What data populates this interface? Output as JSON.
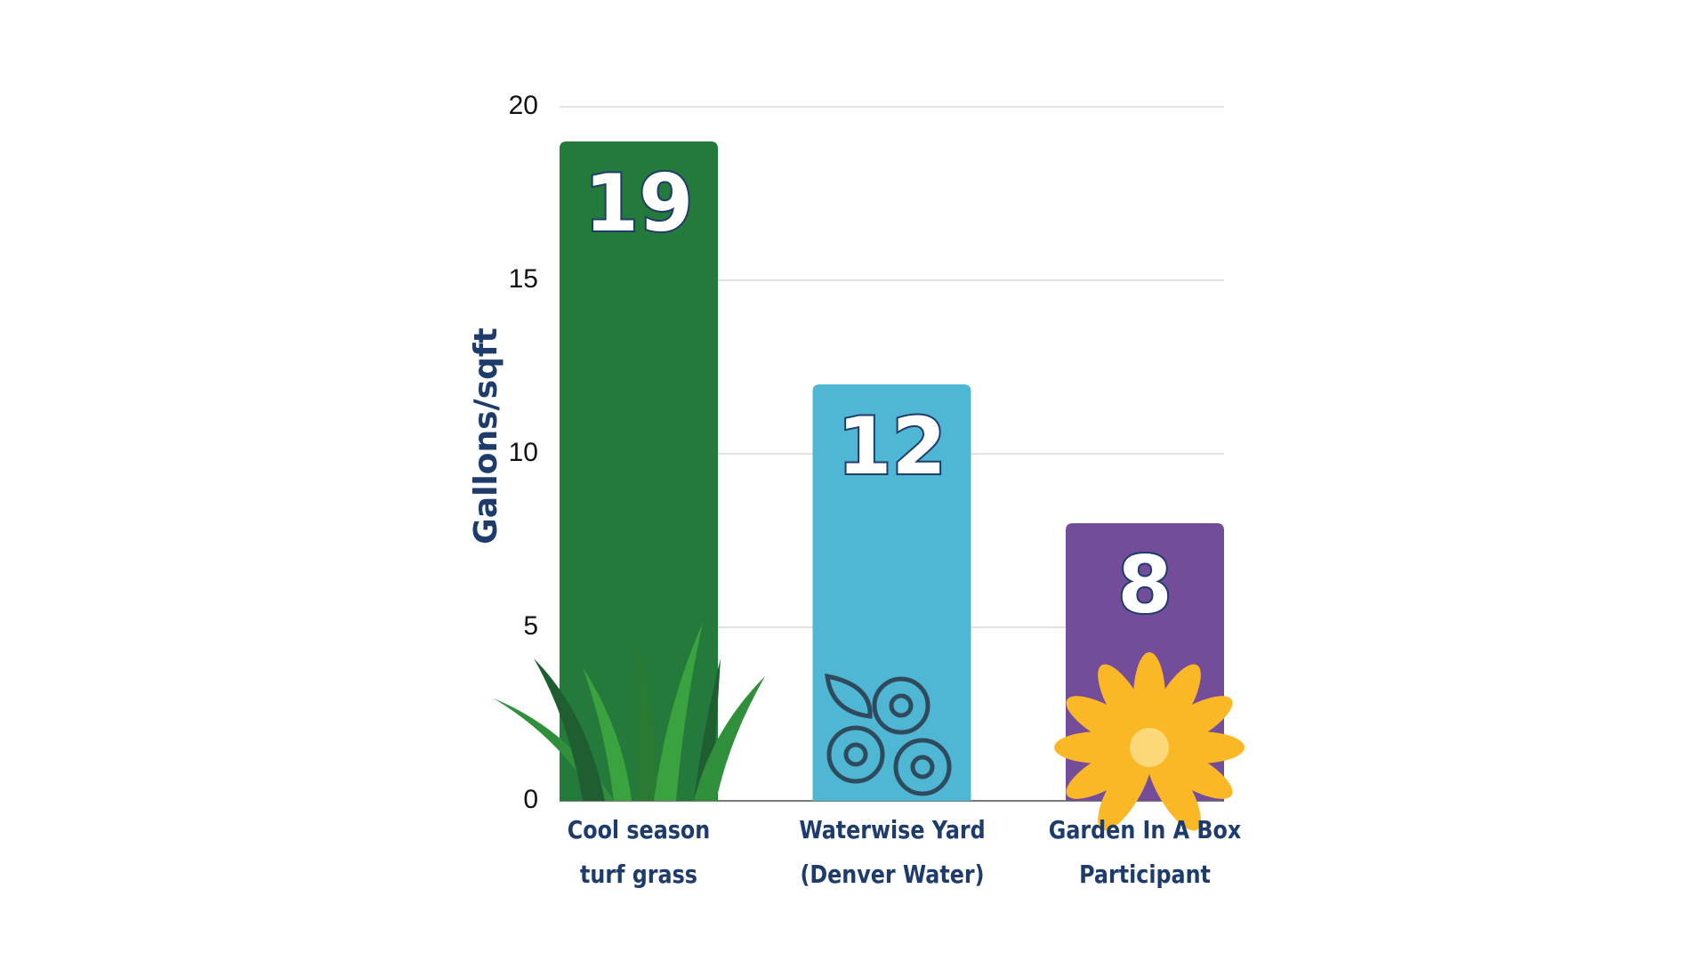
{
  "chart_data": {
    "type": "bar",
    "y_label": "Gallons/sqft",
    "categories": [
      "Cool season\nturf grass",
      "Waterwise Yard\n(Denver Water)",
      "Garden In A Box\nParticipant"
    ],
    "values": [
      19,
      12,
      8
    ],
    "colors": [
      "#237a3b",
      "#4fb7d3",
      "#734c9a"
    ],
    "ylim": [
      0,
      20
    ],
    "yticks": [
      0,
      5,
      10,
      15,
      20
    ],
    "grid": true
  }
}
